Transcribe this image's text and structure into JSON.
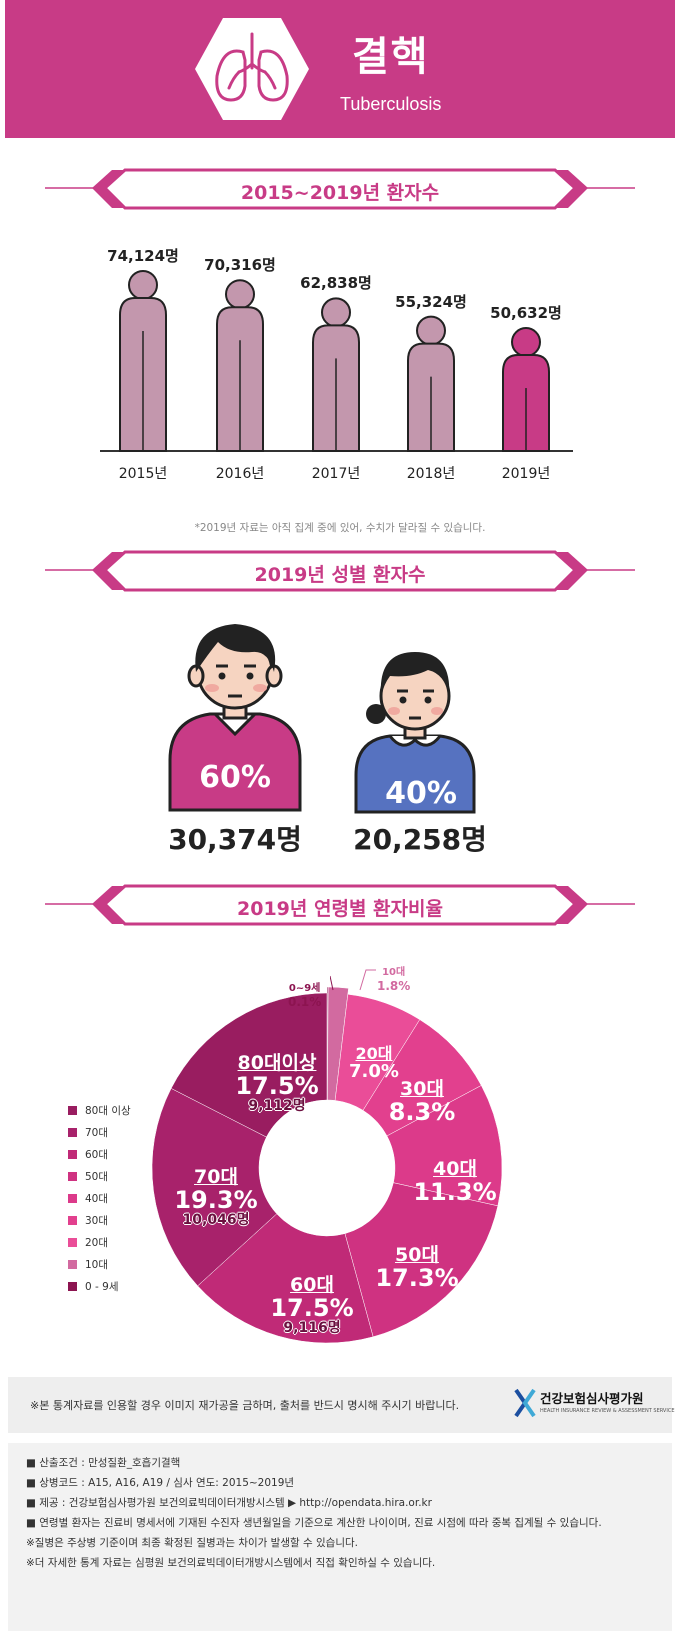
{
  "header": {
    "title": "결핵",
    "subtitle": "Tuberculosis",
    "bg_color": "#c83b86"
  },
  "sections": {
    "yearly_title": "2015~2019년 환자수",
    "gender_title": "2019년 성별 환자수",
    "age_title": "2019년 연령별 환자비율"
  },
  "yearly_footnote": "*2019년 자료는 아직 집계 중에 있어, 수치가 달라질 수 있습니다.",
  "chart_data": [
    {
      "type": "bar",
      "title": "2015~2019년 환자수",
      "categories": [
        "2015년",
        "2016년",
        "2017년",
        "2018년",
        "2019년"
      ],
      "values": [
        74124,
        70316,
        62838,
        55324,
        50632
      ],
      "value_labels": [
        "74,124명",
        "70,316명",
        "62,838명",
        "55,324명",
        "50,632명"
      ],
      "unit": "명",
      "highlight_index": 4,
      "colors": {
        "default": "#c397ad",
        "highlight": "#c83b86"
      }
    },
    {
      "type": "bar",
      "title": "2019년 성별 환자수",
      "categories": [
        "남성",
        "여성"
      ],
      "percent_labels": [
        "60%",
        "40%"
      ],
      "values": [
        30374,
        20258
      ],
      "count_labels": [
        "30,374명",
        "20,258명"
      ],
      "colors": [
        "#c83b86",
        "#5672c0"
      ]
    },
    {
      "type": "pie",
      "title": "2019년 연령별 환자비율",
      "categories": [
        "0~9세",
        "10대",
        "20대",
        "30대",
        "40대",
        "50대",
        "60대",
        "70대",
        "80대이상"
      ],
      "values": [
        0.1,
        1.8,
        7.0,
        8.3,
        11.3,
        17.3,
        17.5,
        19.3,
        17.5
      ],
      "labels": [
        {
          "group": "0~9세",
          "pct": "0.1%"
        },
        {
          "group": "10대",
          "pct": "1.8%"
        },
        {
          "group": "20대",
          "pct": "7.0%"
        },
        {
          "group": "30대",
          "pct": "8.3%"
        },
        {
          "group": "40대",
          "pct": "11.3%"
        },
        {
          "group": "50대",
          "pct": "17.3%"
        },
        {
          "group": "60대",
          "pct": "17.5%",
          "count": "9,116명"
        },
        {
          "group": "70대",
          "pct": "19.3%",
          "count": "10,046명"
        },
        {
          "group": "80대이상",
          "pct": "17.5%",
          "count": "9,112명"
        }
      ],
      "colors": [
        "#8c1450",
        "#d26aa0",
        "#ea4d98",
        "#e2408e",
        "#dc3a8a",
        "#cf3281",
        "#c02a77",
        "#a8226b",
        "#991d60"
      ],
      "legend": [
        "80대 이상",
        "70대",
        "60대",
        "50대",
        "40대",
        "30대",
        "20대",
        "10대",
        "0 - 9세"
      ],
      "legend_colors": [
        "#991d60",
        "#a8226b",
        "#c02a77",
        "#cf3281",
        "#dc3a8a",
        "#e2408e",
        "#ea4d98",
        "#d26aa0",
        "#8c1450"
      ]
    }
  ],
  "notice": "※본 통계자료를 인용할 경우 이미지 재가공을 금하며, 출처를 반드시 명시해 주시기 바랍니다.",
  "logo": {
    "name": "건강보험심사평가원",
    "tagline": "HEALTH INSURANCE REVIEW & ASSESSMENT SERVICE"
  },
  "notes": [
    "■ 산출조건 : 만성질환_호흡기결핵",
    "■ 상병코드 : A15, A16, A19 / 심사 연도: 2015~2019년",
    "■ 제공 : 건강보험심사평가원 보건의료빅데이터개방시스템 ▶ http://opendata.hira.or.kr",
    "■ 연령별 환자는 진료비 명세서에 기재된 수진자 생년월일을 기준으로 계산한 나이이며, 진료 시점에 따라 중복 집계될 수 있습니다.",
    "※질병은 주상병 기준이며 최종 확정된 질병과는 차이가 발생할 수 있습니다.",
    "※더 자세한 통계 자료는 심평원 보건의료빅데이터개방시스템에서 직접 확인하실 수 있습니다."
  ]
}
